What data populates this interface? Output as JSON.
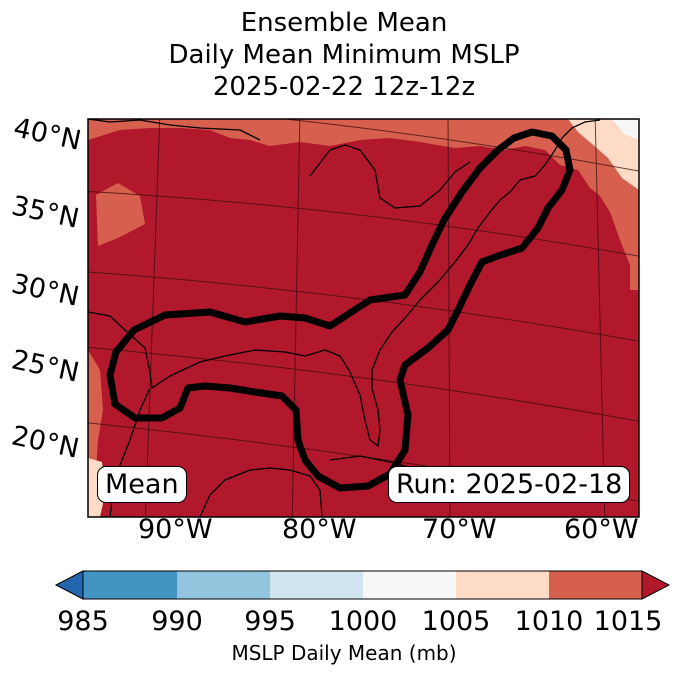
{
  "title": {
    "line1": "Ensemble Mean",
    "line2": "Daily Mean Minimum MSLP",
    "line3": "2025-02-22 12z-12z"
  },
  "map": {
    "lat_labels": [
      "40°N",
      "35°N",
      "30°N",
      "25°N",
      "20°N"
    ],
    "lon_labels": [
      "90°W",
      "80°W",
      "70°W",
      "60°W"
    ],
    "left_box": "Mean",
    "right_box": "Run: 2025-02-18"
  },
  "colorbar": {
    "ticks": [
      "985",
      "990",
      "995",
      "1000",
      "1005",
      "1010",
      "1015"
    ],
    "label": "MSLP Daily Mean (mb)",
    "colors": {
      "below": "#2166ac",
      "985-990": "#4393c3",
      "990-995": "#92c5de",
      "995-1000": "#d1e5f0",
      "1000-1005": "#f7f7f7",
      "1005-1010": "#fddbc7",
      "1010-1015": "#d6604d",
      "above": "#b2182b"
    }
  }
}
